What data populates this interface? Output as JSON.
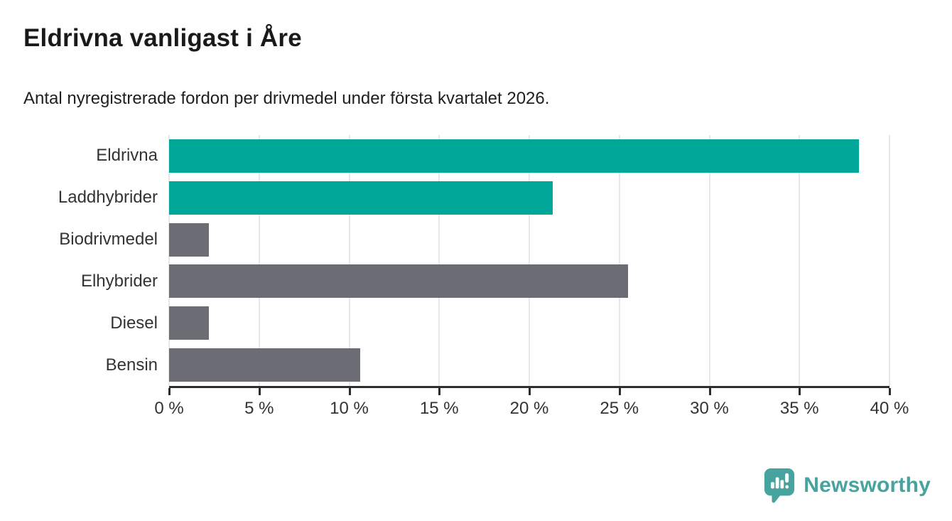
{
  "header": {
    "title": "Eldrivna vanligast i Åre",
    "subtitle": "Antal nyregistrerade fordon per drivmedel under första kvartalet 2026."
  },
  "chart_data": {
    "type": "bar",
    "orientation": "horizontal",
    "title": "Eldrivna vanligast i Åre",
    "subtitle": "Antal nyregistrerade fordon per drivmedel under första kvartalet 2026.",
    "categories": [
      "Eldrivna",
      "Laddhybrider",
      "Biodrivmedel",
      "Elhybrider",
      "Diesel",
      "Bensin"
    ],
    "values": [
      38.3,
      21.3,
      2.2,
      25.5,
      2.2,
      10.6
    ],
    "unit": "%",
    "bar_colors": [
      "#00A698",
      "#00A698",
      "#6C6C75",
      "#6C6C75",
      "#6C6C75",
      "#6C6C75"
    ],
    "xlabel": "",
    "ylabel": "",
    "xlim": [
      0,
      40
    ],
    "x_ticks": [
      0,
      5,
      10,
      15,
      20,
      25,
      30,
      35,
      40
    ],
    "x_tick_labels": [
      "0 %",
      "5 %",
      "10 %",
      "15 %",
      "20 %",
      "25 %",
      "30 %",
      "35 %",
      "40 %"
    ],
    "grid": "vertical",
    "grid_color": "#E8E8E8",
    "axis_color": "#2D2D2D",
    "legend": "none"
  },
  "footer": {
    "brand": "Newsworthy",
    "brand_color": "#47A39D",
    "logo_icon": "bar-chart-speech-bubble-icon"
  }
}
